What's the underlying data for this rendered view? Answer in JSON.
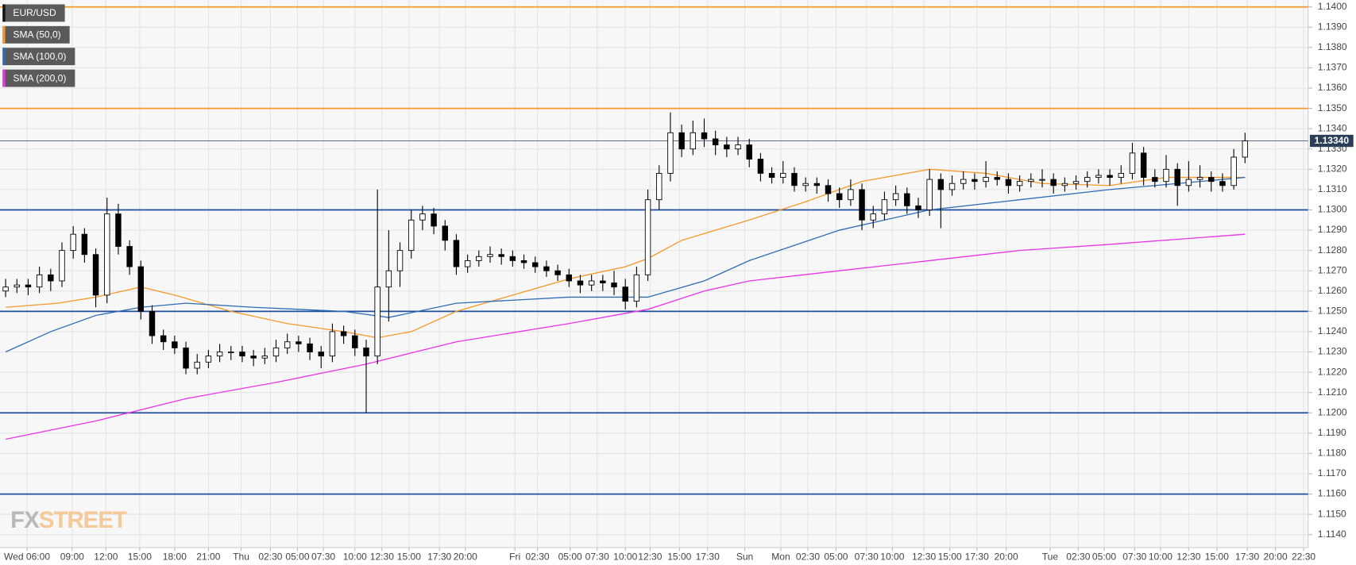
{
  "chart_data": {
    "type": "candlestick",
    "grid": true,
    "xlim": [
      -0.5,
      115.6
    ],
    "ylim": [
      1.11336,
      1.14034
    ],
    "yticks": [
      {
        "value": 1.114,
        "label": "1.1140"
      },
      {
        "value": 1.115,
        "label": "1.1150"
      },
      {
        "value": 1.116,
        "label": "1.1160"
      },
      {
        "value": 1.117,
        "label": "1.1170"
      },
      {
        "value": 1.118,
        "label": "1.1180"
      },
      {
        "value": 1.119,
        "label": "1.1190"
      },
      {
        "value": 1.12,
        "label": "1.1200"
      },
      {
        "value": 1.121,
        "label": "1.1210"
      },
      {
        "value": 1.122,
        "label": "1.1220"
      },
      {
        "value": 1.123,
        "label": "1.1230"
      },
      {
        "value": 1.124,
        "label": "1.1240"
      },
      {
        "value": 1.125,
        "label": "1.1250"
      },
      {
        "value": 1.126,
        "label": "1.1260"
      },
      {
        "value": 1.127,
        "label": "1.1270"
      },
      {
        "value": 1.128,
        "label": "1.1280"
      },
      {
        "value": 1.129,
        "label": "1.1290"
      },
      {
        "value": 1.13,
        "label": "1.1300"
      },
      {
        "value": 1.131,
        "label": "1.1310"
      },
      {
        "value": 1.132,
        "label": "1.1320"
      },
      {
        "value": 1.133,
        "label": "1.1330"
      },
      {
        "value": 1.134,
        "label": "1.1340"
      },
      {
        "value": 1.135,
        "label": "1.1350"
      },
      {
        "value": 1.136,
        "label": "1.1360"
      },
      {
        "value": 1.137,
        "label": "1.1370"
      },
      {
        "value": 1.138,
        "label": "1.1380"
      },
      {
        "value": 1.139,
        "label": "1.1390"
      },
      {
        "value": 1.14,
        "label": "1.1400"
      }
    ],
    "xticks": [
      {
        "value": 1.9,
        "label": "Wed 06:00"
      },
      {
        "value": 5.9,
        "label": "09:00"
      },
      {
        "value": 8.9,
        "label": "12:00"
      },
      {
        "value": 11.9,
        "label": "15:00"
      },
      {
        "value": 15,
        "label": "18:00"
      },
      {
        "value": 18,
        "label": "21:00"
      },
      {
        "value": 20.9,
        "label": "Thu"
      },
      {
        "value": 23.5,
        "label": "02:30"
      },
      {
        "value": 25.9,
        "label": "05:00"
      },
      {
        "value": 28.2,
        "label": "07:30"
      },
      {
        "value": 31,
        "label": "10:00"
      },
      {
        "value": 33.4,
        "label": "12:30"
      },
      {
        "value": 35.8,
        "label": "15:00"
      },
      {
        "value": 38.5,
        "label": "17:30"
      },
      {
        "value": 40.8,
        "label": "20:00"
      },
      {
        "value": 45.2,
        "label": "Fri"
      },
      {
        "value": 47.2,
        "label": "02:30"
      },
      {
        "value": 50.1,
        "label": "05:00"
      },
      {
        "value": 52.5,
        "label": "07:30"
      },
      {
        "value": 55,
        "label": "10:00"
      },
      {
        "value": 57.2,
        "label": "12:30"
      },
      {
        "value": 59.8,
        "label": "15:00"
      },
      {
        "value": 62.3,
        "label": "17:30"
      },
      {
        "value": 65.6,
        "label": "Sun"
      },
      {
        "value": 68.8,
        "label": "Mon"
      },
      {
        "value": 71.2,
        "label": "02:30"
      },
      {
        "value": 73.7,
        "label": "05:00"
      },
      {
        "value": 76.4,
        "label": "07:30"
      },
      {
        "value": 78.7,
        "label": "10:00"
      },
      {
        "value": 81.5,
        "label": "12:30"
      },
      {
        "value": 83.8,
        "label": "15:00"
      },
      {
        "value": 86.2,
        "label": "17:30"
      },
      {
        "value": 88.8,
        "label": "20:00"
      },
      {
        "value": 92.7,
        "label": "Tue"
      },
      {
        "value": 95.2,
        "label": "02:30"
      },
      {
        "value": 97.5,
        "label": "05:00"
      },
      {
        "value": 100.2,
        "label": "07:30"
      },
      {
        "value": 102.5,
        "label": "10:00"
      },
      {
        "value": 105,
        "label": "12:30"
      },
      {
        "value": 107.5,
        "label": "15:00"
      },
      {
        "value": 110.2,
        "label": "17:30"
      },
      {
        "value": 112.7,
        "label": "20:00"
      },
      {
        "value": 115.2,
        "label": "22:30"
      }
    ],
    "series": [
      {
        "name": "EUR/USD",
        "color": "#000000",
        "up_color": "#ffffff",
        "x": [
          0,
          1,
          2,
          3,
          4,
          5,
          6,
          7,
          8,
          9,
          10,
          11,
          12,
          13,
          14,
          15,
          16,
          17,
          18,
          19,
          20,
          21,
          22,
          23,
          24,
          25,
          26,
          27,
          28,
          29,
          30,
          31,
          32,
          33,
          34,
          35,
          36,
          37,
          38,
          39,
          40,
          41,
          42,
          43,
          44,
          45,
          46,
          47,
          48,
          49,
          50,
          51,
          52,
          53,
          54,
          55,
          56,
          57,
          58,
          59,
          60,
          61,
          62,
          63,
          64,
          65,
          66,
          67,
          68,
          69,
          70,
          71,
          72,
          73,
          74,
          75,
          76,
          77,
          78,
          79,
          80,
          81,
          82,
          83,
          84,
          85,
          86,
          87,
          88,
          89,
          90,
          91,
          92,
          93,
          94,
          95,
          96,
          97,
          98,
          99,
          100,
          101,
          102,
          103,
          104,
          105,
          106,
          107,
          108,
          109,
          110
        ],
        "open": [
          1.126,
          1.1262,
          1.1263,
          1.1262,
          1.1268,
          1.1265,
          1.128,
          1.1288,
          1.1278,
          1.1258,
          1.1298,
          1.1282,
          1.1272,
          1.125,
          1.1238,
          1.1235,
          1.1232,
          1.1222,
          1.1225,
          1.1228,
          1.123,
          1.123,
          1.1228,
          1.1227,
          1.1228,
          1.1232,
          1.1235,
          1.1234,
          1.123,
          1.1228,
          1.124,
          1.1238,
          1.1232,
          1.1228,
          1.1262,
          1.127,
          1.128,
          1.1295,
          1.1298,
          1.1292,
          1.1285,
          1.1272,
          1.1275,
          1.1277,
          1.1278,
          1.1277,
          1.1275,
          1.1274,
          1.1272,
          1.127,
          1.1268,
          1.1265,
          1.1263,
          1.1265,
          1.1264,
          1.1262,
          1.1255,
          1.1268,
          1.1305,
          1.1318,
          1.1338,
          1.133,
          1.1338,
          1.1335,
          1.1332,
          1.133,
          1.1332,
          1.1325,
          1.1318,
          1.1316,
          1.1318,
          1.1312,
          1.1313,
          1.1312,
          1.1308,
          1.1305,
          1.131,
          1.1295,
          1.1298,
          1.1305,
          1.1308,
          1.1302,
          1.13,
          1.1315,
          1.131,
          1.1313,
          1.1315,
          1.1314,
          1.1316,
          1.1315,
          1.1312,
          1.1314,
          1.1315,
          1.1315,
          1.1312,
          1.1313,
          1.1314,
          1.1316,
          1.1317,
          1.1316,
          1.1318,
          1.1328,
          1.1316,
          1.1314,
          1.132,
          1.1312,
          1.1315,
          1.1316,
          1.1314,
          1.1312,
          1.1326
        ],
        "high": [
          1.1266,
          1.1266,
          1.1266,
          1.1272,
          1.1271,
          1.1284,
          1.1292,
          1.1291,
          1.1281,
          1.1306,
          1.1303,
          1.1285,
          1.1275,
          1.1253,
          1.1241,
          1.1238,
          1.1235,
          1.1229,
          1.1231,
          1.1234,
          1.1233,
          1.1233,
          1.1231,
          1.1232,
          1.1236,
          1.1239,
          1.1238,
          1.1237,
          1.1233,
          1.1244,
          1.1243,
          1.1241,
          1.1236,
          1.131,
          1.129,
          1.1284,
          1.13,
          1.1302,
          1.1301,
          1.1295,
          1.1288,
          1.1278,
          1.128,
          1.1282,
          1.1281,
          1.128,
          1.1278,
          1.1277,
          1.1275,
          1.1273,
          1.1271,
          1.1268,
          1.1268,
          1.1268,
          1.127,
          1.1266,
          1.1272,
          1.131,
          1.1322,
          1.1348,
          1.1342,
          1.1344,
          1.1345,
          1.1339,
          1.1336,
          1.1336,
          1.1335,
          1.1328,
          1.1321,
          1.1324,
          1.1321,
          1.1316,
          1.1316,
          1.1315,
          1.1311,
          1.1315,
          1.1313,
          1.1302,
          1.1309,
          1.1312,
          1.1311,
          1.1306,
          1.132,
          1.1318,
          1.1317,
          1.1319,
          1.1318,
          1.1324,
          1.1319,
          1.1318,
          1.1317,
          1.1318,
          1.132,
          1.1318,
          1.1316,
          1.1317,
          1.1319,
          1.132,
          1.132,
          1.1322,
          1.1333,
          1.1331,
          1.132,
          1.1327,
          1.1323,
          1.1324,
          1.1322,
          1.1319,
          1.1318,
          1.133,
          1.1338
        ],
        "low": [
          1.1257,
          1.1259,
          1.1258,
          1.1259,
          1.126,
          1.1262,
          1.1276,
          1.1274,
          1.1252,
          1.1254,
          1.1278,
          1.1268,
          1.1246,
          1.1234,
          1.1231,
          1.1229,
          1.1219,
          1.1219,
          1.1222,
          1.1225,
          1.1226,
          1.1225,
          1.1223,
          1.1224,
          1.1225,
          1.1229,
          1.123,
          1.1226,
          1.1222,
          1.1225,
          1.1234,
          1.1228,
          1.12,
          1.1224,
          1.1245,
          1.1262,
          1.1276,
          1.129,
          1.1288,
          1.128,
          1.1268,
          1.1269,
          1.1272,
          1.1274,
          1.1273,
          1.1272,
          1.1271,
          1.1269,
          1.1267,
          1.1265,
          1.1262,
          1.1259,
          1.126,
          1.126,
          1.1258,
          1.1251,
          1.1252,
          1.1265,
          1.13,
          1.1314,
          1.1326,
          1.1327,
          1.1331,
          1.1327,
          1.1326,
          1.1327,
          1.1321,
          1.1314,
          1.1313,
          1.1313,
          1.1309,
          1.1309,
          1.1308,
          1.1304,
          1.1301,
          1.1302,
          1.129,
          1.1291,
          1.1295,
          1.1302,
          1.1298,
          1.1296,
          1.1297,
          1.1291,
          1.1307,
          1.131,
          1.131,
          1.1311,
          1.1312,
          1.1308,
          1.1309,
          1.1311,
          1.1311,
          1.1308,
          1.1309,
          1.131,
          1.1311,
          1.1313,
          1.1312,
          1.1313,
          1.1315,
          1.1312,
          1.1311,
          1.1311,
          1.1302,
          1.1309,
          1.1311,
          1.1309,
          1.1309,
          1.131,
          1.1323
        ],
        "close": [
          1.1262,
          1.1263,
          1.1262,
          1.1268,
          1.1265,
          1.128,
          1.1288,
          1.1278,
          1.1258,
          1.1298,
          1.1282,
          1.1272,
          1.125,
          1.1238,
          1.1235,
          1.1232,
          1.1222,
          1.1225,
          1.1228,
          1.123,
          1.123,
          1.1228,
          1.1227,
          1.1228,
          1.1232,
          1.1235,
          1.1234,
          1.123,
          1.1228,
          1.124,
          1.1238,
          1.1232,
          1.1228,
          1.1262,
          1.127,
          1.128,
          1.1295,
          1.1298,
          1.1292,
          1.1285,
          1.1272,
          1.1275,
          1.1277,
          1.1278,
          1.1277,
          1.1275,
          1.1274,
          1.1272,
          1.127,
          1.1268,
          1.1265,
          1.1263,
          1.1265,
          1.1264,
          1.1262,
          1.1255,
          1.1268,
          1.1305,
          1.1318,
          1.1338,
          1.133,
          1.1338,
          1.1335,
          1.1332,
          1.133,
          1.1332,
          1.1325,
          1.1318,
          1.1316,
          1.1318,
          1.1312,
          1.1313,
          1.1312,
          1.1308,
          1.1305,
          1.131,
          1.1295,
          1.1298,
          1.1305,
          1.1308,
          1.1302,
          1.13,
          1.1315,
          1.131,
          1.1313,
          1.1315,
          1.1314,
          1.1316,
          1.1315,
          1.1312,
          1.1314,
          1.1315,
          1.1315,
          1.1312,
          1.1313,
          1.1314,
          1.1316,
          1.1317,
          1.1316,
          1.1318,
          1.1328,
          1.1316,
          1.1314,
          1.132,
          1.1312,
          1.1315,
          1.1316,
          1.1314,
          1.1312,
          1.1326,
          1.1334
        ]
      }
    ],
    "overlays": [
      {
        "name": "SMA (50,0)",
        "color": "#f39a2b",
        "x": [
          0,
          4.6,
          8,
          12,
          15,
          20,
          25,
          30,
          33,
          36,
          40,
          45,
          50,
          55,
          57,
          60,
          66,
          71,
          76,
          82,
          87,
          92,
          98,
          103,
          110
        ],
        "values": [
          1.1252,
          1.1254,
          1.1257,
          1.1262,
          1.1258,
          1.125,
          1.1244,
          1.124,
          1.1237,
          1.124,
          1.125,
          1.1258,
          1.1266,
          1.1272,
          1.1276,
          1.1285,
          1.1295,
          1.1304,
          1.1314,
          1.132,
          1.1318,
          1.1313,
          1.1312,
          1.1316,
          1.1316
        ]
      },
      {
        "name": "SMA (100,0)",
        "color": "#2e6db4",
        "x": [
          0,
          4,
          8,
          12,
          16,
          22,
          30,
          34,
          40,
          50,
          57,
          62,
          66,
          74,
          82,
          90,
          98,
          104,
          110
        ],
        "values": [
          1.123,
          1.124,
          1.1248,
          1.1252,
          1.1254,
          1.1252,
          1.125,
          1.1247,
          1.1254,
          1.1257,
          1.1257,
          1.1265,
          1.1275,
          1.129,
          1.13,
          1.1305,
          1.131,
          1.1313,
          1.1316
        ]
      },
      {
        "name": "SMA (200,0)",
        "color": "#e935e8",
        "x": [
          0,
          8,
          16,
          24,
          32,
          40,
          50,
          57,
          62,
          66,
          74,
          82,
          90,
          98,
          110
        ],
        "values": [
          1.1187,
          1.1196,
          1.1207,
          1.1215,
          1.1224,
          1.1235,
          1.1244,
          1.1251,
          1.126,
          1.1265,
          1.127,
          1.1275,
          1.128,
          1.1283,
          1.1288
        ]
      }
    ],
    "levels": [
      {
        "value": 1.14,
        "color": "#f39a2b"
      },
      {
        "value": 1.135,
        "color": "#f39a2b"
      },
      {
        "value": 1.13,
        "color": "#1f4e9c"
      },
      {
        "value": 1.125,
        "color": "#1f4e9c"
      },
      {
        "value": 1.12,
        "color": "#1f4e9c"
      },
      {
        "value": 1.116,
        "color": "#1f4e9c"
      }
    ],
    "last_price": {
      "value": 1.1334,
      "label": "1.13340",
      "color": "#2b3e57"
    }
  },
  "branding": {
    "fx": "FX",
    "street": "STREET"
  }
}
